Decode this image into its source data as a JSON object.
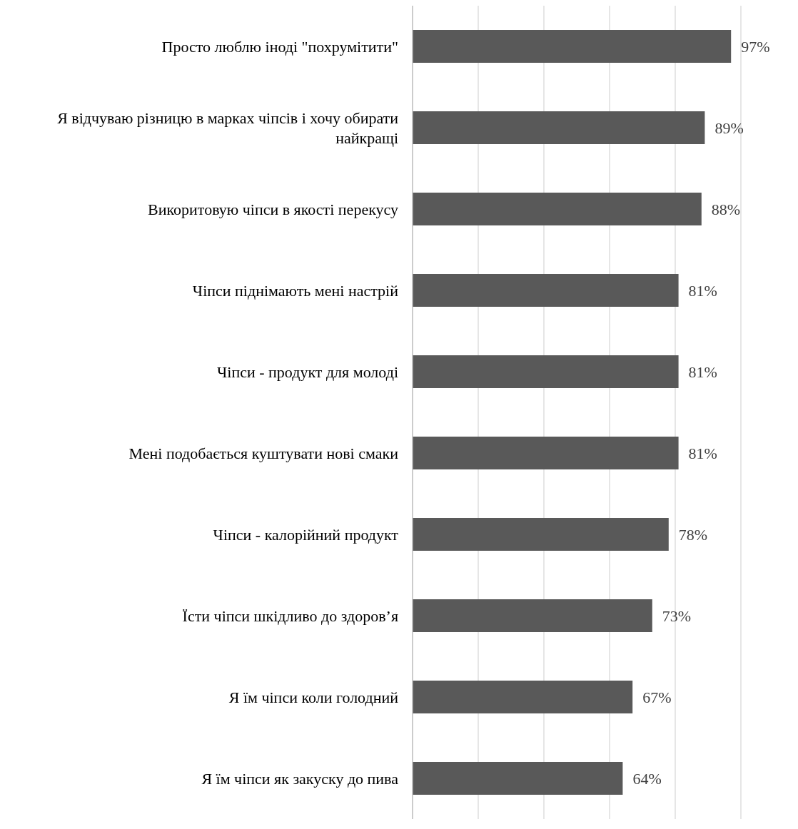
{
  "chart_data": {
    "type": "bar",
    "orientation": "horizontal",
    "categories": [
      "Просто люблю іноді \"похрумітити\"",
      "Я відчуваю різницю в марках чіпсів і хочу обирати найкращі",
      "Викоритовую чіпси в якості перекусу",
      "Чіпси піднімають мені настрій",
      "Чіпси - продукт для молоді",
      "Мені подобається куштувати нові смаки",
      "Чіпси - калорійний продукт",
      "Їсти чіпси шкідливо до здоров’я",
      "Я їм чіпси коли голодний",
      "Я їм чіпси як закуску до пива"
    ],
    "values": [
      97,
      89,
      88,
      81,
      81,
      81,
      78,
      73,
      67,
      64
    ],
    "value_labels": [
      "97%",
      "89%",
      "88%",
      "81%",
      "81%",
      "81%",
      "78%",
      "73%",
      "67%",
      "64%"
    ],
    "color": "#595959",
    "grid": "x",
    "tick_labels": "y"
  }
}
